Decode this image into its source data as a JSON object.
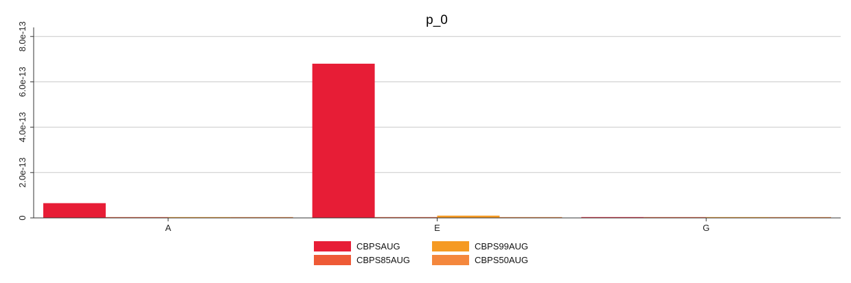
{
  "chart_data": {
    "type": "bar",
    "title": "p_0",
    "xlabel": "",
    "ylabel": "",
    "categories": [
      "A",
      "E",
      "G"
    ],
    "series": [
      {
        "name": "CBPSAUG",
        "color": "#e71d36",
        "values": [
          6.5e-14,
          6.8e-13,
          0
        ]
      },
      {
        "name": "CBPS85AUG",
        "color": "#ee5a36",
        "values": [
          0,
          0,
          0
        ]
      },
      {
        "name": "CBPS99AUG",
        "color": "#f59a23",
        "values": [
          0,
          1e-14,
          0
        ]
      },
      {
        "name": "CBPS50AUG",
        "color": "#f4873d",
        "values": [
          0,
          0,
          0
        ]
      }
    ],
    "ylim": [
      0,
      8.4e-13
    ],
    "yticks": [
      0,
      2e-13,
      4e-13,
      6e-13,
      8e-13
    ],
    "ytick_labels": [
      "0",
      "2.0e-13",
      "4.0e-13",
      "6.0e-13",
      "8.0e-13"
    ],
    "grid": true,
    "legend_position": "bottom-center"
  }
}
